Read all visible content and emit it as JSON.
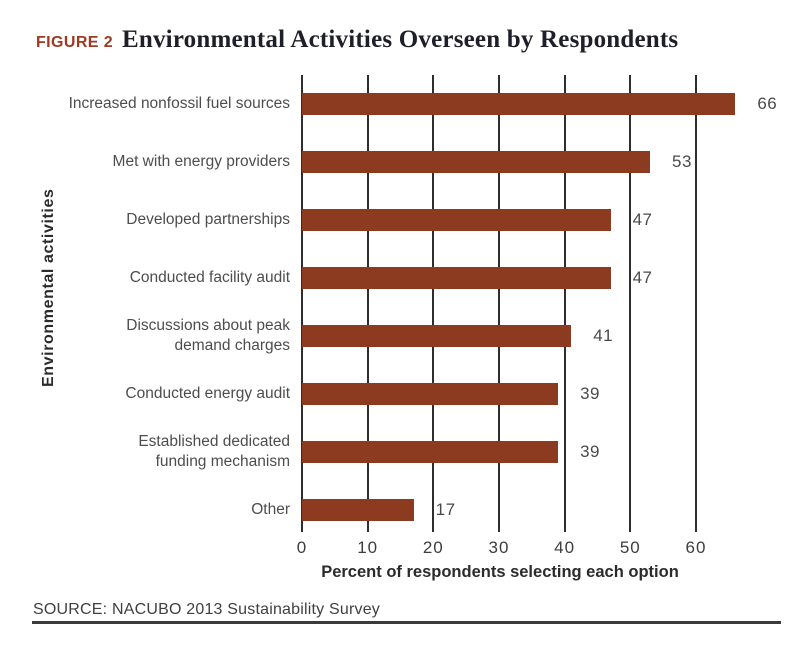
{
  "figure": {
    "label": "FIGURE 2",
    "title": "Environmental Activities Overseen by Respondents"
  },
  "chart_data": {
    "type": "bar",
    "orientation": "horizontal",
    "title": "Environmental Activities Overseen by Respondents",
    "categories": [
      "Increased nonfossil fuel sources",
      "Met with energy providers",
      "Developed partnerships",
      "Conducted facility audit",
      "Discussions about peak\ndemand charges",
      "Conducted energy audit",
      "Established dedicated\nfunding mechanism",
      "Other"
    ],
    "values": [
      66,
      53,
      47,
      47,
      41,
      39,
      39,
      17
    ],
    "xlabel": "Percent of respondents selecting each option",
    "ylabel": "Environmental activities",
    "xticks": [
      0,
      10,
      20,
      30,
      40,
      50,
      60
    ],
    "xlim": [
      0,
      70
    ],
    "grid": "vertical-gridlines",
    "legend": "none",
    "bar_color": "#8c3b21",
    "gridline_color": "#2e2e2e"
  },
  "source": {
    "text": "SOURCE: NACUBO 2013 Sustainability Survey"
  },
  "colors": {
    "figure_label": "#9e3a21",
    "title_text": "#1f1f29",
    "category_text": "#4d4d4d",
    "axis_text": "#2b2b2b"
  }
}
